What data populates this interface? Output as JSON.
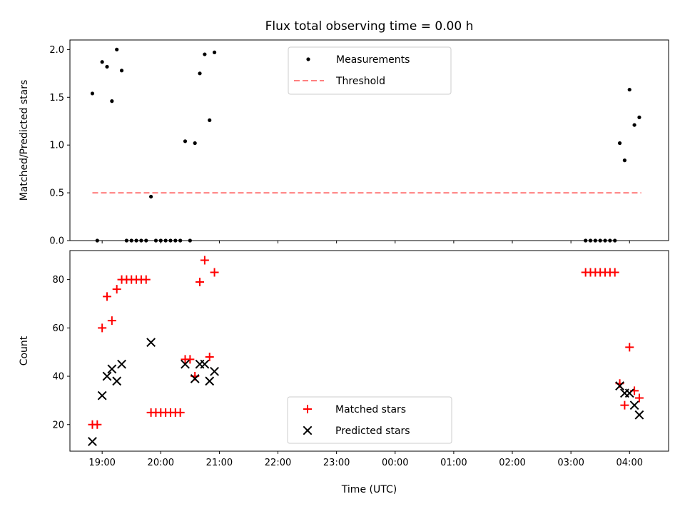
{
  "chart_data": [
    {
      "type": "scatter",
      "title": "Flux total observing time = 0.00 h",
      "xlabel": "",
      "ylabel": "Matched/Predicted stars",
      "ylim": [
        0,
        2.1
      ],
      "yticks": [
        0.0,
        0.5,
        1.0,
        1.5,
        2.0
      ],
      "ytick_labels": [
        "0.0",
        "0.5",
        "1.0",
        "1.5",
        "2.0"
      ],
      "xlim": [
        "18:27",
        "04:40"
      ],
      "legend": "upper-center",
      "series": [
        {
          "name": "Measurements",
          "marker": "dot",
          "color": "#000000",
          "points": [
            [
              "18:50",
              1.54
            ],
            [
              "18:55",
              0.0
            ],
            [
              "19:00",
              1.87
            ],
            [
              "19:05",
              1.82
            ],
            [
              "19:10",
              1.46
            ],
            [
              "19:15",
              2.0
            ],
            [
              "19:20",
              1.78
            ],
            [
              "19:25",
              0.0
            ],
            [
              "19:30",
              0.0
            ],
            [
              "19:35",
              0.0
            ],
            [
              "19:40",
              0.0
            ],
            [
              "19:45",
              0.0
            ],
            [
              "19:50",
              0.46
            ],
            [
              "19:55",
              0.0
            ],
            [
              "20:00",
              0.0
            ],
            [
              "20:05",
              0.0
            ],
            [
              "20:10",
              0.0
            ],
            [
              "20:15",
              0.0
            ],
            [
              "20:20",
              0.0
            ],
            [
              "20:25",
              1.04
            ],
            [
              "20:30",
              0.0
            ],
            [
              "20:35",
              1.02
            ],
            [
              "20:40",
              1.75
            ],
            [
              "20:45",
              1.95
            ],
            [
              "20:50",
              1.26
            ],
            [
              "20:55",
              1.97
            ],
            [
              "03:15",
              0.0
            ],
            [
              "03:20",
              0.0
            ],
            [
              "03:25",
              0.0
            ],
            [
              "03:30",
              0.0
            ],
            [
              "03:35",
              0.0
            ],
            [
              "03:40",
              0.0
            ],
            [
              "03:45",
              0.0
            ],
            [
              "03:50",
              1.02
            ],
            [
              "03:55",
              0.84
            ],
            [
              "04:00",
              1.58
            ],
            [
              "04:05",
              1.21
            ],
            [
              "04:10",
              1.29
            ]
          ]
        },
        {
          "name": "Threshold",
          "marker": "dashed-line",
          "color": "#ff7f7f",
          "points": [
            [
              "18:50",
              0.5
            ],
            [
              "04:12",
              0.5
            ]
          ]
        }
      ]
    },
    {
      "type": "scatter",
      "title": "",
      "xlabel": "Time (UTC)",
      "ylabel": "Count",
      "ylim": [
        9,
        92
      ],
      "yticks": [
        20,
        40,
        60,
        80
      ],
      "ytick_labels": [
        "20",
        "40",
        "60",
        "80"
      ],
      "xlim": [
        "18:27",
        "04:40"
      ],
      "xticks": [
        "19:00",
        "20:00",
        "21:00",
        "22:00",
        "23:00",
        "00:00",
        "01:00",
        "02:00",
        "03:00",
        "04:00"
      ],
      "xtick_labels": [
        "19:00",
        "20:00",
        "21:00",
        "22:00",
        "23:00",
        "00:00",
        "01:00",
        "02:00",
        "03:00",
        "04:00"
      ],
      "legend": "lower-center",
      "series": [
        {
          "name": "Matched stars",
          "marker": "plus",
          "color": "#ff0000",
          "points": [
            [
              "18:50",
              20
            ],
            [
              "18:55",
              20
            ],
            [
              "19:00",
              60
            ],
            [
              "19:05",
              73
            ],
            [
              "19:10",
              63
            ],
            [
              "19:15",
              76
            ],
            [
              "19:20",
              80
            ],
            [
              "19:25",
              80
            ],
            [
              "19:30",
              80
            ],
            [
              "19:35",
              80
            ],
            [
              "19:40",
              80
            ],
            [
              "19:45",
              80
            ],
            [
              "19:50",
              25
            ],
            [
              "19:55",
              25
            ],
            [
              "20:00",
              25
            ],
            [
              "20:05",
              25
            ],
            [
              "20:10",
              25
            ],
            [
              "20:15",
              25
            ],
            [
              "20:20",
              25
            ],
            [
              "20:25",
              47
            ],
            [
              "20:30",
              47
            ],
            [
              "20:35",
              40
            ],
            [
              "20:40",
              79
            ],
            [
              "20:45",
              88
            ],
            [
              "20:50",
              48
            ],
            [
              "20:55",
              83
            ],
            [
              "03:15",
              83
            ],
            [
              "03:20",
              83
            ],
            [
              "03:25",
              83
            ],
            [
              "03:30",
              83
            ],
            [
              "03:35",
              83
            ],
            [
              "03:40",
              83
            ],
            [
              "03:45",
              83
            ],
            [
              "03:50",
              37
            ],
            [
              "03:55",
              28
            ],
            [
              "04:00",
              52
            ],
            [
              "04:05",
              34
            ],
            [
              "04:10",
              31
            ]
          ]
        },
        {
          "name": "Predicted stars",
          "marker": "x",
          "color": "#000000",
          "points": [
            [
              "18:50",
              13
            ],
            [
              "19:00",
              32
            ],
            [
              "19:05",
              40
            ],
            [
              "19:10",
              43
            ],
            [
              "19:15",
              38
            ],
            [
              "19:20",
              45
            ],
            [
              "19:50",
              54
            ],
            [
              "20:25",
              45
            ],
            [
              "20:35",
              39
            ],
            [
              "20:40",
              45
            ],
            [
              "20:45",
              45
            ],
            [
              "20:50",
              38
            ],
            [
              "20:55",
              42
            ],
            [
              "03:50",
              36
            ],
            [
              "03:55",
              33
            ],
            [
              "04:00",
              33
            ],
            [
              "04:05",
              28
            ],
            [
              "04:10",
              24
            ]
          ]
        }
      ]
    }
  ]
}
